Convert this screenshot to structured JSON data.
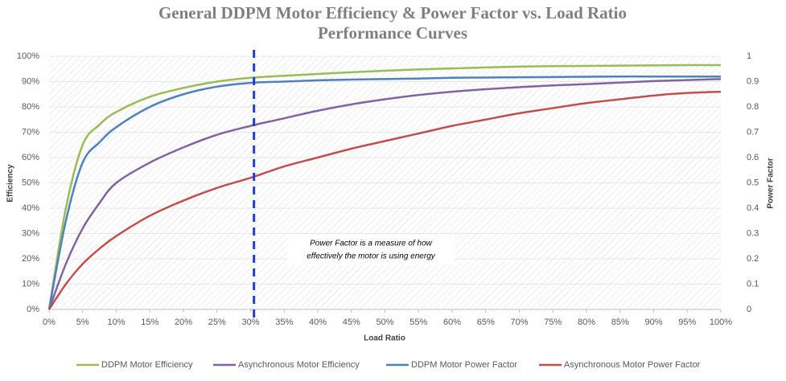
{
  "chart_data": {
    "type": "line",
    "title": [
      "General DDPM Motor Efficiency & Power Factor vs. Load Ratio",
      "Performance Curves"
    ],
    "x_label": "Load Ratio",
    "y_label": "Efficiency",
    "y2_label": "Power Factor",
    "annotation": [
      "Power Factor is a measure of how",
      "effectively the motor is using energy"
    ],
    "reference_line": {
      "x": 30.5,
      "color": "#1f3fd0"
    },
    "x": [
      0,
      2.5,
      5,
      7.5,
      10,
      15,
      20,
      25,
      30,
      35,
      40,
      45,
      50,
      55,
      60,
      65,
      70,
      75,
      80,
      85,
      90,
      95,
      100
    ],
    "xlim": [
      0,
      100
    ],
    "xticks": [
      {
        "value": 0,
        "label": "0%"
      },
      {
        "value": 5,
        "label": "5%"
      },
      {
        "value": 10,
        "label": "10%"
      },
      {
        "value": 15,
        "label": "15%"
      },
      {
        "value": 20,
        "label": "20%"
      },
      {
        "value": 25,
        "label": "25%"
      },
      {
        "value": 30,
        "label": "30%"
      },
      {
        "value": 35,
        "label": "35%"
      },
      {
        "value": 40,
        "label": "40%"
      },
      {
        "value": 45,
        "label": "45%"
      },
      {
        "value": 50,
        "label": "50%"
      },
      {
        "value": 55,
        "label": "55%"
      },
      {
        "value": 60,
        "label": "60%"
      },
      {
        "value": 65,
        "label": "65%"
      },
      {
        "value": 70,
        "label": "70%"
      },
      {
        "value": 75,
        "label": "75%"
      },
      {
        "value": 80,
        "label": "80%"
      },
      {
        "value": 85,
        "label": "85%"
      },
      {
        "value": 90,
        "label": "90%"
      },
      {
        "value": 95,
        "label": "95%"
      },
      {
        "value": 100,
        "label": "100%"
      }
    ],
    "ylim": [
      0,
      100
    ],
    "yticks": [
      {
        "value": 0,
        "label": "0%"
      },
      {
        "value": 10,
        "label": "10%"
      },
      {
        "value": 20,
        "label": "20%"
      },
      {
        "value": 30,
        "label": "30%"
      },
      {
        "value": 40,
        "label": "40%"
      },
      {
        "value": 50,
        "label": "50%"
      },
      {
        "value": 60,
        "label": "60%"
      },
      {
        "value": 70,
        "label": "70%"
      },
      {
        "value": 80,
        "label": "80%"
      },
      {
        "value": 90,
        "label": "90%"
      },
      {
        "value": 100,
        "label": "100%"
      }
    ],
    "y2lim": [
      0,
      1
    ],
    "y2ticks": [
      0,
      0.1,
      0.2,
      0.3,
      0.4,
      0.5,
      0.6,
      0.7,
      0.8,
      0.9,
      1
    ],
    "grid": true,
    "legend": "bottom",
    "series": [
      {
        "name": "DDPM Motor Efficiency",
        "color": "#9bbb59",
        "values": [
          0,
          40,
          65,
          73,
          78,
          84,
          87.5,
          90,
          91.5,
          92.3,
          93,
          93.7,
          94.3,
          94.8,
          95.2,
          95.6,
          95.9,
          96.1,
          96.2,
          96.3,
          96.4,
          96.5,
          96.5
        ]
      },
      {
        "name": "Asynchronous Motor Efficiency",
        "color": "#8064a2",
        "values": [
          0,
          18,
          32,
          42,
          50,
          58,
          64,
          69,
          72.5,
          75.5,
          78.5,
          81,
          83,
          84.7,
          86,
          87,
          87.8,
          88.5,
          89,
          89.6,
          90.2,
          90.6,
          91
        ]
      },
      {
        "name": "DDPM Motor Power Factor",
        "color": "#4f81bd",
        "axis": "y2",
        "values": [
          0,
          0.35,
          0.58,
          0.66,
          0.72,
          0.8,
          0.85,
          0.88,
          0.895,
          0.9,
          0.905,
          0.908,
          0.91,
          0.912,
          0.915,
          0.916,
          0.917,
          0.918,
          0.919,
          0.92,
          0.92,
          0.92,
          0.92
        ]
      },
      {
        "name": "Asynchronous Motor Power Factor",
        "color": "#c0504d",
        "axis": "y2",
        "values": [
          0,
          0.1,
          0.18,
          0.24,
          0.29,
          0.37,
          0.43,
          0.48,
          0.52,
          0.565,
          0.6,
          0.635,
          0.665,
          0.695,
          0.725,
          0.75,
          0.775,
          0.795,
          0.815,
          0.83,
          0.845,
          0.855,
          0.86
        ]
      }
    ]
  }
}
